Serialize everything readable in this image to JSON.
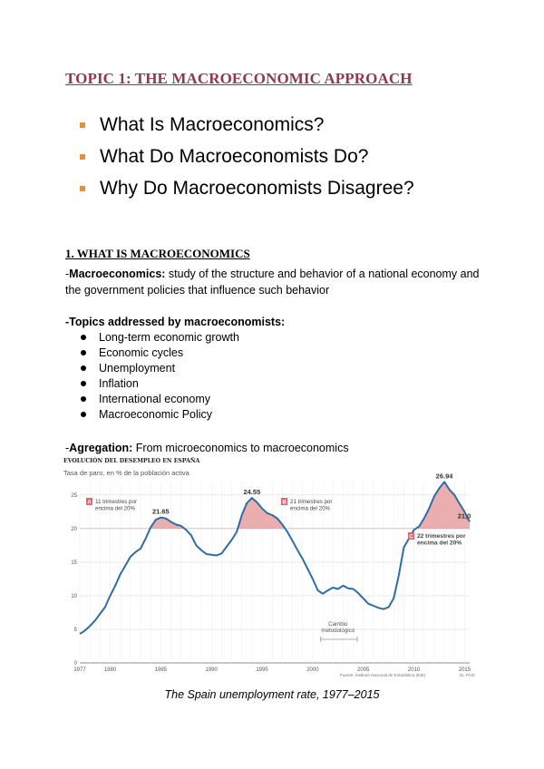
{
  "title": "TOPIC 1:  THE MACROECONOMIC APPROACH",
  "main_questions": [
    "What Is Macroeconomics?",
    "What Do Macroeconomists Do?",
    "Why Do Macroeconomists Disagree?"
  ],
  "section1": {
    "heading": "1. WHAT IS MACROECONOMICS",
    "definition_prefix": "-",
    "definition_term": "Macroeconomics:",
    "definition_text": " study of the structure and behavior of a national economy and the government policies that influence such behavior",
    "topics_label": "-Topics addressed by macroeconomists:",
    "topics": [
      "Long-term economic growth",
      "Economic cycles",
      "Unemployment",
      "Inflation",
      "International economy",
      "Macroeconomic Policy"
    ],
    "agregation_prefix": "-",
    "agregation_term": "Agregation:",
    "agregation_text": " From microeconomics to macroeconomics"
  },
  "chart_data": {
    "type": "line",
    "title": "EVOLUCIÓN DEL DESEMPLEO EN ESPAÑA",
    "subtitle": "Tasa de paro, en % de la población activa",
    "xlabel": "",
    "ylabel": "",
    "x_ticks": [
      "1977",
      "1980",
      "1985",
      "1990",
      "1995",
      "2000",
      "2005",
      "2010",
      "2015"
    ],
    "y_ticks": [
      "0",
      "5",
      "10",
      "15",
      "20",
      "25"
    ],
    "xlim": [
      1977,
      2015.5
    ],
    "ylim": [
      0,
      27
    ],
    "grid": true,
    "threshold": 20,
    "threshold_color": "#e8a0a0",
    "line_color": "#2e6da4",
    "series": [
      {
        "x": [
          1977,
          1977.5,
          1978,
          1978.5,
          1979,
          1979.5,
          1980,
          1980.5,
          1981,
          1981.5,
          1982,
          1982.5,
          1983,
          1983.5,
          1984,
          1984.5,
          1985,
          1985.5,
          1986,
          1986.5,
          1987,
          1987.5,
          1988,
          1988.5,
          1989,
          1989.5,
          1990,
          1990.5,
          1991,
          1991.5,
          1992,
          1992.5,
          1993,
          1993.5,
          1994,
          1994.5,
          1995,
          1995.5,
          1996,
          1996.5,
          1997,
          1997.5,
          1998,
          1998.5,
          1999,
          1999.5,
          2000,
          2000.5,
          2001,
          2001.5,
          2002,
          2002.5,
          2003,
          2003.5,
          2004,
          2004.5,
          2005,
          2005.5,
          2006,
          2006.5,
          2007,
          2007.5,
          2008,
          2008.5,
          2009,
          2009.5,
          2010,
          2010.5,
          2011,
          2011.5,
          2012,
          2012.5,
          2013,
          2013.5,
          2014,
          2014.5,
          2015,
          2015.5
        ],
        "values": [
          4.3,
          4.8,
          5.5,
          6.3,
          7.3,
          8.3,
          10.0,
          11.5,
          13.2,
          14.5,
          15.8,
          16.5,
          17.0,
          18.5,
          20.2,
          21.3,
          21.65,
          21.5,
          21.0,
          20.6,
          20.4,
          19.8,
          19.0,
          17.5,
          16.8,
          16.2,
          16.1,
          16.0,
          16.3,
          17.3,
          18.3,
          19.5,
          22.0,
          23.8,
          24.55,
          23.9,
          23.0,
          22.3,
          22.0,
          21.5,
          20.6,
          19.5,
          18.2,
          16.8,
          15.5,
          14.0,
          12.5,
          10.8,
          10.3,
          10.8,
          11.2,
          11.0,
          11.5,
          11.1,
          11.0,
          10.4,
          9.6,
          8.8,
          8.5,
          8.2,
          8.0,
          8.3,
          9.6,
          13.0,
          17.2,
          18.5,
          19.8,
          20.3,
          21.5,
          23.0,
          24.8,
          26.0,
          26.94,
          25.8,
          25.0,
          23.7,
          22.5,
          21.0
        ]
      }
    ],
    "annotations": [
      {
        "label": "24.55",
        "x": 1994,
        "y": 24.55
      },
      {
        "label": "21.65",
        "x": 1985,
        "y": 21.65
      },
      {
        "label": "26.94",
        "x": 2013,
        "y": 26.94
      },
      {
        "label": "21,0",
        "x": 2015.5,
        "y": 21.0
      }
    ],
    "legend_boxes": [
      {
        "letter": "A",
        "lines": [
          "11 trimestres por",
          "encima del 20%"
        ]
      },
      {
        "letter": "B",
        "lines": [
          "21 trimestres por",
          "encima del 20%"
        ]
      },
      {
        "letter": "C",
        "lines": [
          "22 trimestres por",
          "encima del 20%"
        ]
      }
    ],
    "note": {
      "lines": [
        "Cambio",
        "metodológico"
      ]
    },
    "source": "Fuente: Instituto Nacional de Estadística (INE).",
    "publisher": "EL PAÍS"
  },
  "caption": "The Spain unemployment rate, 1977–2015"
}
